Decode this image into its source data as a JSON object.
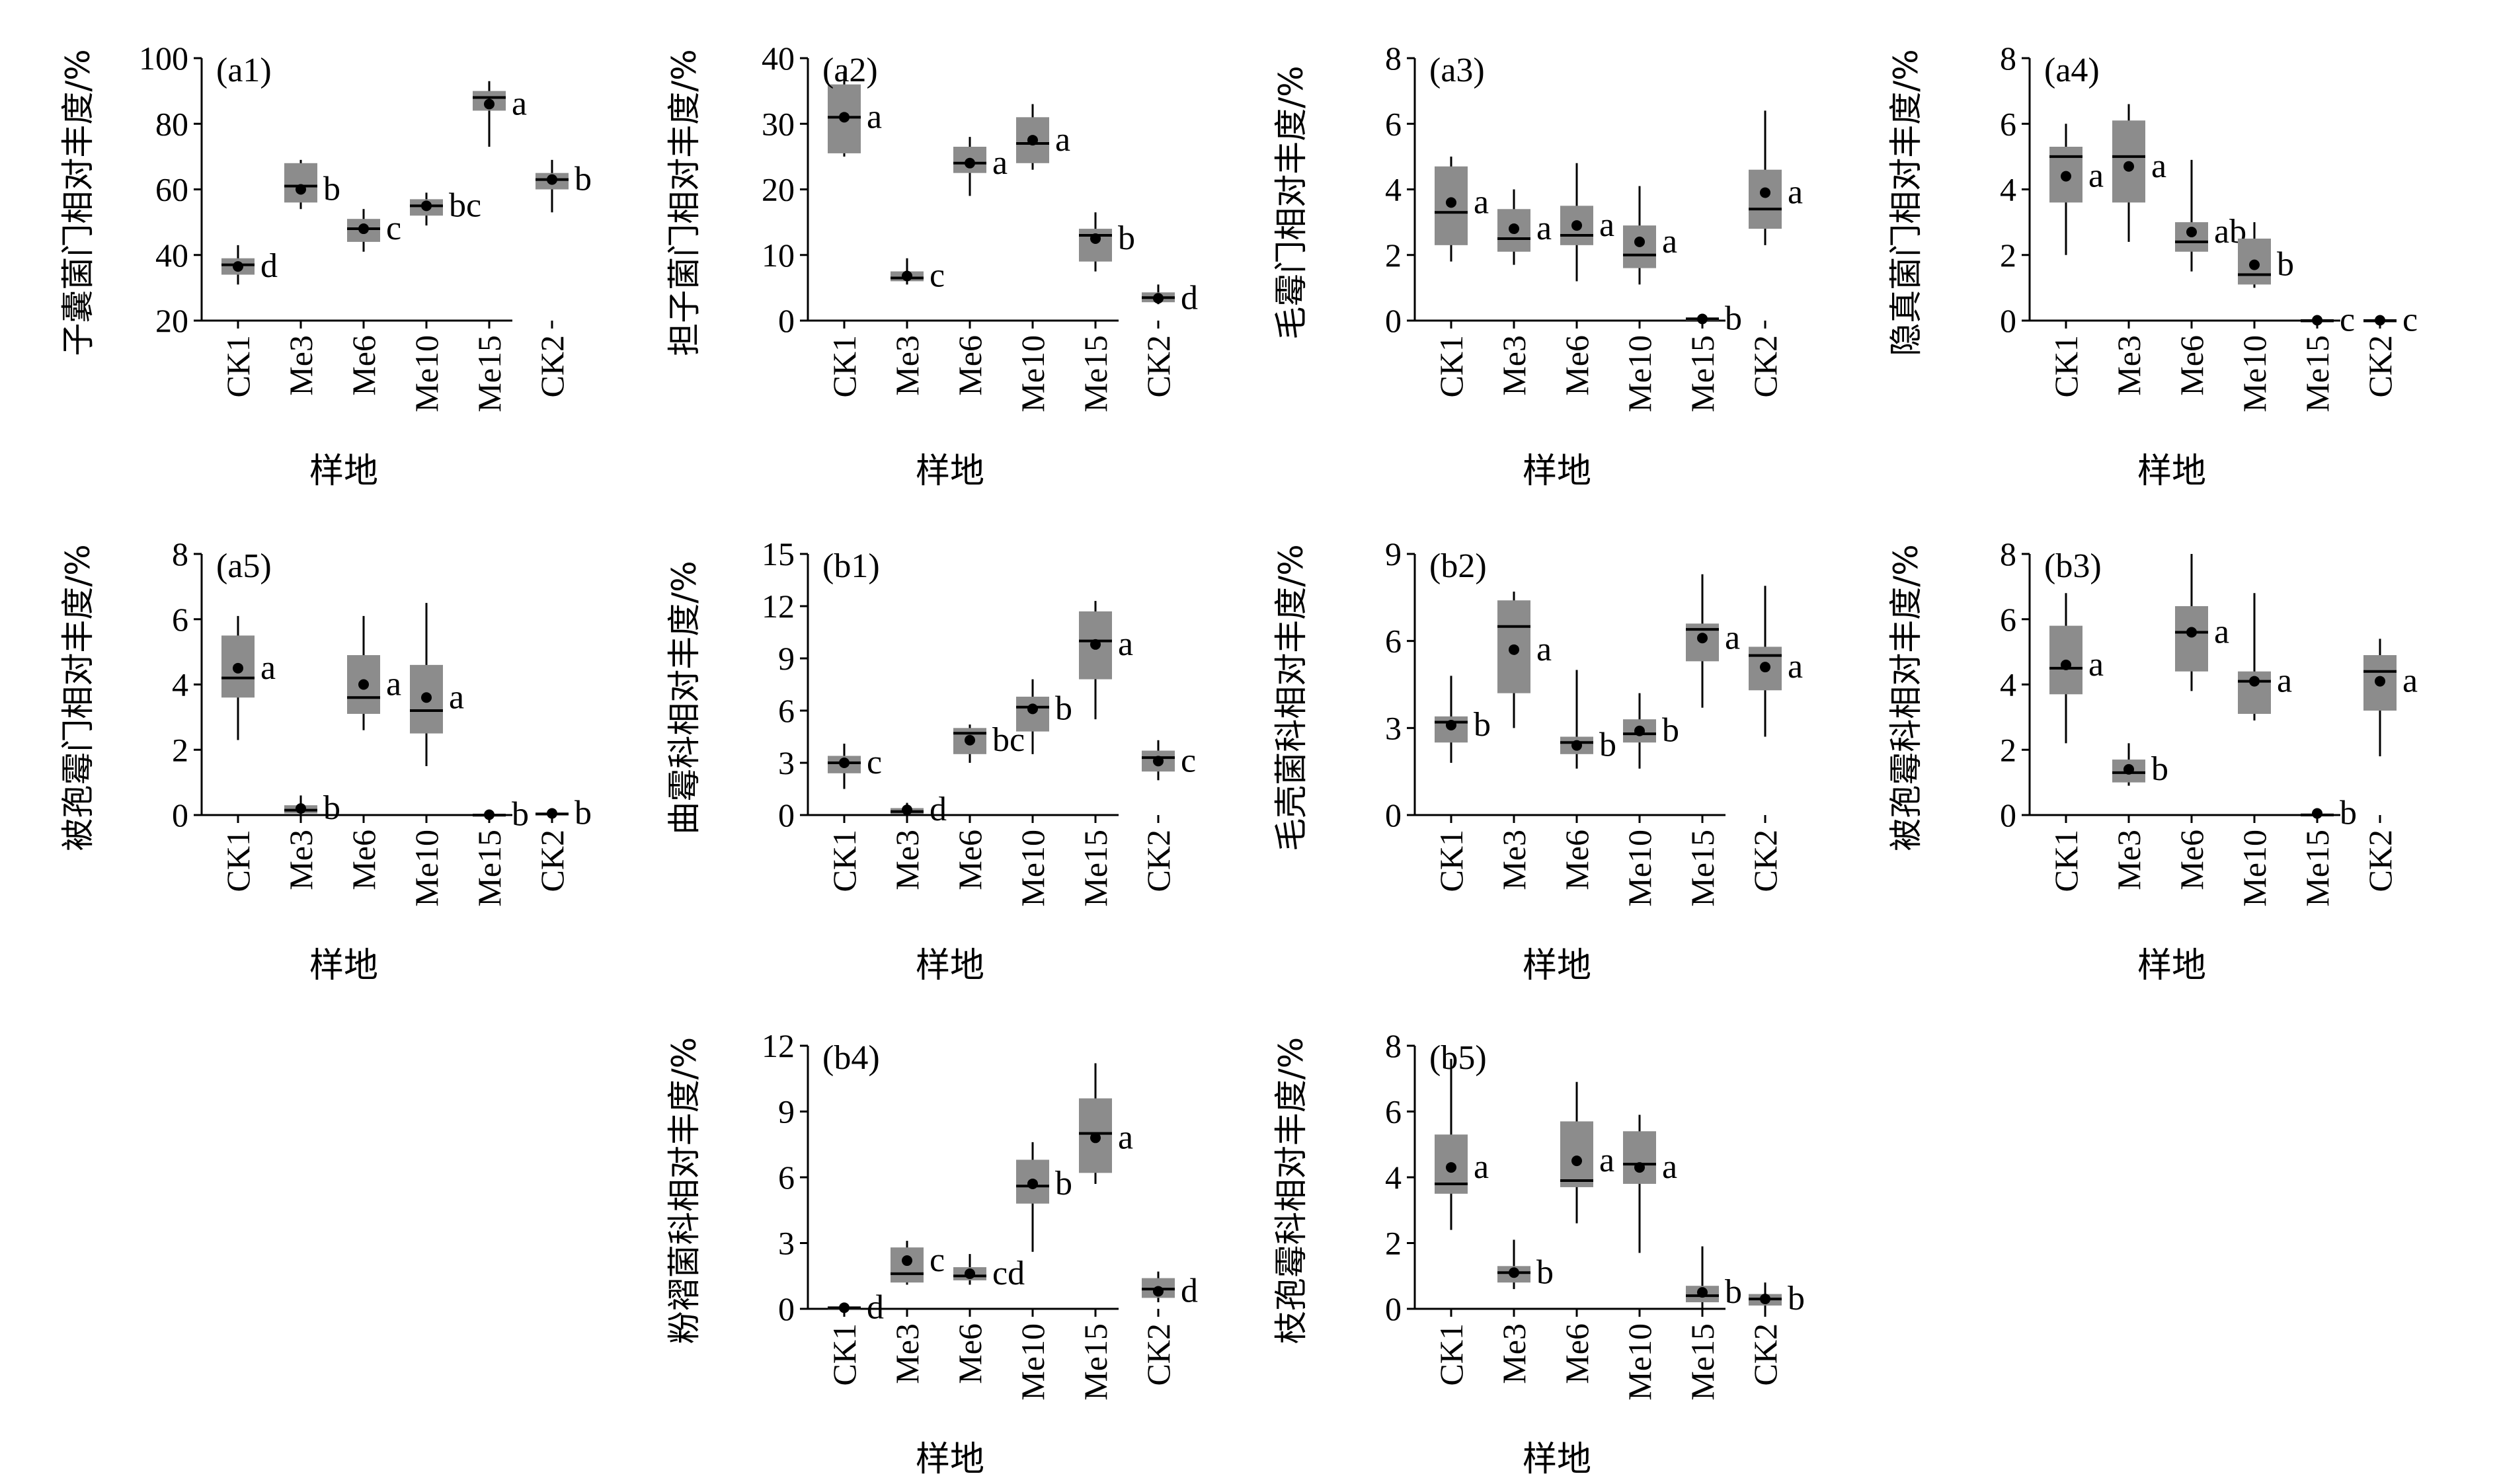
{
  "colors": {
    "box_fill": "#8c8c8c",
    "axis": "#000000",
    "mean_dot": "#000000"
  },
  "chart_data": [
    {
      "type": "box",
      "panel_label": "(a1)",
      "ylabel": "子囊菌门相对丰度/%",
      "xlabel": "样地",
      "ylim": [
        20,
        100
      ],
      "yticks": [
        20,
        40,
        60,
        80,
        100
      ],
      "categories": [
        "CK1",
        "Me3",
        "Me6",
        "Me10",
        "Me15",
        "CK2"
      ],
      "boxes": [
        {
          "min": 31,
          "q1": 34,
          "median": 37,
          "q3": 39,
          "max": 43,
          "mean": 36.5,
          "letter": "d"
        },
        {
          "min": 54,
          "q1": 56,
          "median": 61,
          "q3": 68,
          "max": 69,
          "mean": 60,
          "letter": "b"
        },
        {
          "min": 41,
          "q1": 44,
          "median": 48,
          "q3": 51,
          "max": 54,
          "mean": 48,
          "letter": "c"
        },
        {
          "min": 49,
          "q1": 52,
          "median": 55,
          "q3": 57,
          "max": 59,
          "mean": 55,
          "letter": "bc"
        },
        {
          "min": 73,
          "q1": 84,
          "median": 88,
          "q3": 90,
          "max": 93,
          "mean": 86,
          "letter": "a"
        },
        {
          "min": 53,
          "q1": 60,
          "median": 63,
          "q3": 65,
          "max": 69,
          "mean": 63,
          "letter": "b"
        }
      ]
    },
    {
      "type": "box",
      "panel_label": "(a2)",
      "ylabel": "担子菌门相对丰度/%",
      "xlabel": "样地",
      "ylim": [
        0,
        40
      ],
      "yticks": [
        0,
        10,
        20,
        30,
        40
      ],
      "categories": [
        "CK1",
        "Me3",
        "Me6",
        "Me10",
        "Me15",
        "CK2"
      ],
      "boxes": [
        {
          "min": 25,
          "q1": 25.5,
          "median": 31,
          "q3": 36,
          "max": 38,
          "mean": 31,
          "letter": "a"
        },
        {
          "min": 5.5,
          "q1": 6,
          "median": 6.5,
          "q3": 7.5,
          "max": 9.5,
          "mean": 6.8,
          "letter": "c"
        },
        {
          "min": 19,
          "q1": 22.5,
          "median": 24,
          "q3": 26.5,
          "max": 28,
          "mean": 24,
          "letter": "a"
        },
        {
          "min": 23,
          "q1": 24,
          "median": 27,
          "q3": 31,
          "max": 33,
          "mean": 27.5,
          "letter": "a"
        },
        {
          "min": 7.5,
          "q1": 9,
          "median": 13,
          "q3": 14,
          "max": 16.5,
          "mean": 12.5,
          "letter": "b"
        },
        {
          "min": 2.5,
          "q1": 2.8,
          "median": 3.5,
          "q3": 4.3,
          "max": 5.5,
          "mean": 3.4,
          "letter": "d"
        }
      ]
    },
    {
      "type": "box",
      "panel_label": "(a3)",
      "ylabel": "毛霉门相对丰度/%",
      "xlabel": "样地",
      "ylim": [
        0,
        8
      ],
      "yticks": [
        0,
        2,
        4,
        6,
        8
      ],
      "categories": [
        "CK1",
        "Me3",
        "Me6",
        "Me10",
        "Me15",
        "CK2"
      ],
      "boxes": [
        {
          "min": 1.8,
          "q1": 2.3,
          "median": 3.3,
          "q3": 4.7,
          "max": 5,
          "mean": 3.6,
          "letter": "a"
        },
        {
          "min": 1.7,
          "q1": 2.1,
          "median": 2.5,
          "q3": 3.4,
          "max": 4,
          "mean": 2.8,
          "letter": "a"
        },
        {
          "min": 1.2,
          "q1": 2.3,
          "median": 2.6,
          "q3": 3.5,
          "max": 4.8,
          "mean": 2.9,
          "letter": "a"
        },
        {
          "min": 1.1,
          "q1": 1.6,
          "median": 2,
          "q3": 2.9,
          "max": 4.1,
          "mean": 2.4,
          "letter": "a"
        },
        {
          "min": 0,
          "q1": 0,
          "median": 0.05,
          "q3": 0.1,
          "max": 0.15,
          "mean": 0.05,
          "letter": "b"
        },
        {
          "min": 2.3,
          "q1": 2.8,
          "median": 3.4,
          "q3": 4.6,
          "max": 6.4,
          "mean": 3.9,
          "letter": "a"
        }
      ]
    },
    {
      "type": "box",
      "panel_label": "(a4)",
      "ylabel": "隐真菌门相对丰度/%",
      "xlabel": "样地",
      "ylim": [
        0,
        8
      ],
      "yticks": [
        0,
        2,
        4,
        6,
        8
      ],
      "categories": [
        "CK1",
        "Me3",
        "Me6",
        "Me10",
        "Me15",
        "CK2"
      ],
      "boxes": [
        {
          "min": 2,
          "q1": 3.6,
          "median": 5,
          "q3": 5.3,
          "max": 6,
          "mean": 4.4,
          "letter": "a"
        },
        {
          "min": 2.4,
          "q1": 3.6,
          "median": 5,
          "q3": 6.1,
          "max": 6.6,
          "mean": 4.7,
          "letter": "a"
        },
        {
          "min": 1.5,
          "q1": 2.1,
          "median": 2.4,
          "q3": 3,
          "max": 4.9,
          "mean": 2.7,
          "letter": "ab"
        },
        {
          "min": 1,
          "q1": 1.1,
          "median": 1.4,
          "q3": 2.5,
          "max": 3,
          "mean": 1.7,
          "letter": "b"
        },
        {
          "min": 0,
          "q1": 0,
          "median": 0,
          "q3": 0.02,
          "max": 0.05,
          "mean": 0.01,
          "letter": "c"
        },
        {
          "min": 0,
          "q1": 0,
          "median": 0,
          "q3": 0.02,
          "max": 0.05,
          "mean": 0.01,
          "letter": "c"
        }
      ]
    },
    {
      "type": "box",
      "panel_label": "(a5)",
      "ylabel": "被孢霉门相对丰度/%",
      "xlabel": "样地",
      "ylim": [
        0,
        8
      ],
      "yticks": [
        0,
        2,
        4,
        6,
        8
      ],
      "categories": [
        "CK1",
        "Me3",
        "Me6",
        "Me10",
        "Me15",
        "CK2"
      ],
      "boxes": [
        {
          "min": 2.3,
          "q1": 3.6,
          "median": 4.2,
          "q3": 5.5,
          "max": 6.1,
          "mean": 4.5,
          "letter": "a"
        },
        {
          "min": 0,
          "q1": 0.05,
          "median": 0.15,
          "q3": 0.3,
          "max": 0.6,
          "mean": 0.2,
          "letter": "b"
        },
        {
          "min": 2.6,
          "q1": 3.1,
          "median": 3.6,
          "q3": 4.9,
          "max": 6.1,
          "mean": 4,
          "letter": "a"
        },
        {
          "min": 1.5,
          "q1": 2.5,
          "median": 3.2,
          "q3": 4.6,
          "max": 6.5,
          "mean": 3.6,
          "letter": "a"
        },
        {
          "min": 0,
          "q1": 0,
          "median": 0,
          "q3": 0.03,
          "max": 0.05,
          "mean": 0.01,
          "letter": "b"
        },
        {
          "min": 0,
          "q1": 0,
          "median": 0.03,
          "q3": 0.08,
          "max": 0.15,
          "mean": 0.05,
          "letter": "b"
        }
      ]
    },
    {
      "type": "box",
      "panel_label": "(b1)",
      "ylabel": "曲霉科相对丰度/%",
      "xlabel": "样地",
      "ylim": [
        0,
        15
      ],
      "yticks": [
        0,
        3,
        6,
        9,
        12,
        15
      ],
      "categories": [
        "CK1",
        "Me3",
        "Me6",
        "Me10",
        "Me15",
        "CK2"
      ],
      "boxes": [
        {
          "min": 1.5,
          "q1": 2.4,
          "median": 3,
          "q3": 3.4,
          "max": 4.1,
          "mean": 3,
          "letter": "c"
        },
        {
          "min": 0,
          "q1": 0.05,
          "median": 0.2,
          "q3": 0.4,
          "max": 0.7,
          "mean": 0.3,
          "letter": "d"
        },
        {
          "min": 3,
          "q1": 3.5,
          "median": 4.7,
          "q3": 5,
          "max": 5.2,
          "mean": 4.3,
          "letter": "bc"
        },
        {
          "min": 3.5,
          "q1": 4.8,
          "median": 6.2,
          "q3": 6.8,
          "max": 7.8,
          "mean": 6.1,
          "letter": "b"
        },
        {
          "min": 5.5,
          "q1": 7.8,
          "median": 10,
          "q3": 11.7,
          "max": 12.3,
          "mean": 9.8,
          "letter": "a"
        },
        {
          "min": 2,
          "q1": 2.5,
          "median": 3.3,
          "q3": 3.7,
          "max": 4.3,
          "mean": 3.1,
          "letter": "c"
        }
      ]
    },
    {
      "type": "box",
      "panel_label": "(b2)",
      "ylabel": "毛壳菌科相对丰度/%",
      "xlabel": "样地",
      "ylim": [
        0,
        9
      ],
      "yticks": [
        0,
        3,
        6,
        9
      ],
      "categories": [
        "CK1",
        "Me3",
        "Me6",
        "Me10",
        "Me15",
        "CK2"
      ],
      "boxes": [
        {
          "min": 1.8,
          "q1": 2.5,
          "median": 3.2,
          "q3": 3.4,
          "max": 4.8,
          "mean": 3.1,
          "letter": "b"
        },
        {
          "min": 3,
          "q1": 4.2,
          "median": 6.5,
          "q3": 7.4,
          "max": 7.7,
          "mean": 5.7,
          "letter": "a"
        },
        {
          "min": 1.6,
          "q1": 2.1,
          "median": 2.5,
          "q3": 2.7,
          "max": 5,
          "mean": 2.4,
          "letter": "b"
        },
        {
          "min": 1.6,
          "q1": 2.5,
          "median": 2.8,
          "q3": 3.3,
          "max": 4.2,
          "mean": 2.9,
          "letter": "b"
        },
        {
          "min": 3.7,
          "q1": 5.3,
          "median": 6.4,
          "q3": 6.6,
          "max": 8.3,
          "mean": 6.1,
          "letter": "a"
        },
        {
          "min": 2.7,
          "q1": 4.3,
          "median": 5.5,
          "q3": 5.8,
          "max": 7.9,
          "mean": 5.1,
          "letter": "a"
        }
      ]
    },
    {
      "type": "box",
      "panel_label": "(b3)",
      "ylabel": "被孢霉科相对丰度/%",
      "xlabel": "样地",
      "ylim": [
        0,
        8
      ],
      "yticks": [
        0,
        2,
        4,
        6,
        8
      ],
      "categories": [
        "CK1",
        "Me3",
        "Me6",
        "Me10",
        "Me15",
        "CK2"
      ],
      "boxes": [
        {
          "min": 2.2,
          "q1": 3.7,
          "median": 4.5,
          "q3": 5.8,
          "max": 6.8,
          "mean": 4.6,
          "letter": "a"
        },
        {
          "min": 0.9,
          "q1": 1,
          "median": 1.3,
          "q3": 1.7,
          "max": 2.2,
          "mean": 1.4,
          "letter": "b"
        },
        {
          "min": 3.8,
          "q1": 4.4,
          "median": 5.6,
          "q3": 6.4,
          "max": 8,
          "mean": 5.6,
          "letter": "a"
        },
        {
          "min": 2.9,
          "q1": 3.1,
          "median": 4.1,
          "q3": 4.4,
          "max": 6.8,
          "mean": 4.1,
          "letter": "a"
        },
        {
          "min": 0,
          "q1": 0,
          "median": 0,
          "q3": 0.05,
          "max": 0.1,
          "mean": 0.05,
          "letter": "b"
        },
        {
          "min": 1.8,
          "q1": 3.2,
          "median": 4.4,
          "q3": 4.9,
          "max": 5.4,
          "mean": 4.1,
          "letter": "a"
        }
      ]
    },
    {
      "type": "box",
      "panel_label": "(b4)",
      "ylabel": "粉褶菌科相对丰度/%",
      "xlabel": "样地",
      "ylim": [
        0,
        12
      ],
      "yticks": [
        0,
        3,
        6,
        9,
        12
      ],
      "categories": [
        "CK1",
        "Me3",
        "Me6",
        "Me10",
        "Me15",
        "CK2"
      ],
      "boxes": [
        {
          "min": 0,
          "q1": 0,
          "median": 0.05,
          "q3": 0.1,
          "max": 0.15,
          "mean": 0.05,
          "letter": "d"
        },
        {
          "min": 1.1,
          "q1": 1.2,
          "median": 1.6,
          "q3": 2.8,
          "max": 3.1,
          "mean": 2.2,
          "letter": "c"
        },
        {
          "min": 1.1,
          "q1": 1.3,
          "median": 1.5,
          "q3": 1.9,
          "max": 2.5,
          "mean": 1.6,
          "letter": "cd"
        },
        {
          "min": 2.6,
          "q1": 4.8,
          "median": 5.6,
          "q3": 6.8,
          "max": 7.6,
          "mean": 5.7,
          "letter": "b"
        },
        {
          "min": 5.7,
          "q1": 6.2,
          "median": 8,
          "q3": 9.6,
          "max": 11.2,
          "mean": 7.8,
          "letter": "a"
        },
        {
          "min": 0.3,
          "q1": 0.5,
          "median": 0.9,
          "q3": 1.4,
          "max": 1.7,
          "mean": 0.8,
          "letter": "d"
        }
      ]
    },
    {
      "type": "box",
      "panel_label": "(b5)",
      "ylabel": "枝孢霉科相对丰度/%",
      "xlabel": "样地",
      "ylim": [
        0,
        8
      ],
      "yticks": [
        0,
        2,
        4,
        6,
        8
      ],
      "categories": [
        "CK1",
        "Me3",
        "Me6",
        "Me10",
        "Me15",
        "CK2"
      ],
      "boxes": [
        {
          "min": 2.4,
          "q1": 3.5,
          "median": 3.8,
          "q3": 5.3,
          "max": 7.6,
          "mean": 4.3,
          "letter": "a"
        },
        {
          "min": 0.6,
          "q1": 0.8,
          "median": 1.1,
          "q3": 1.3,
          "max": 2.1,
          "mean": 1.1,
          "letter": "b"
        },
        {
          "min": 2.6,
          "q1": 3.7,
          "median": 3.9,
          "q3": 5.7,
          "max": 6.9,
          "mean": 4.5,
          "letter": "a"
        },
        {
          "min": 1.7,
          "q1": 3.8,
          "median": 4.4,
          "q3": 5.4,
          "max": 5.9,
          "mean": 4.3,
          "letter": "a"
        },
        {
          "min": 0,
          "q1": 0.2,
          "median": 0.4,
          "q3": 0.7,
          "max": 1.9,
          "mean": 0.5,
          "letter": "b"
        },
        {
          "min": 0,
          "q1": 0.1,
          "median": 0.3,
          "q3": 0.45,
          "max": 0.8,
          "mean": 0.3,
          "letter": "b"
        }
      ]
    }
  ]
}
